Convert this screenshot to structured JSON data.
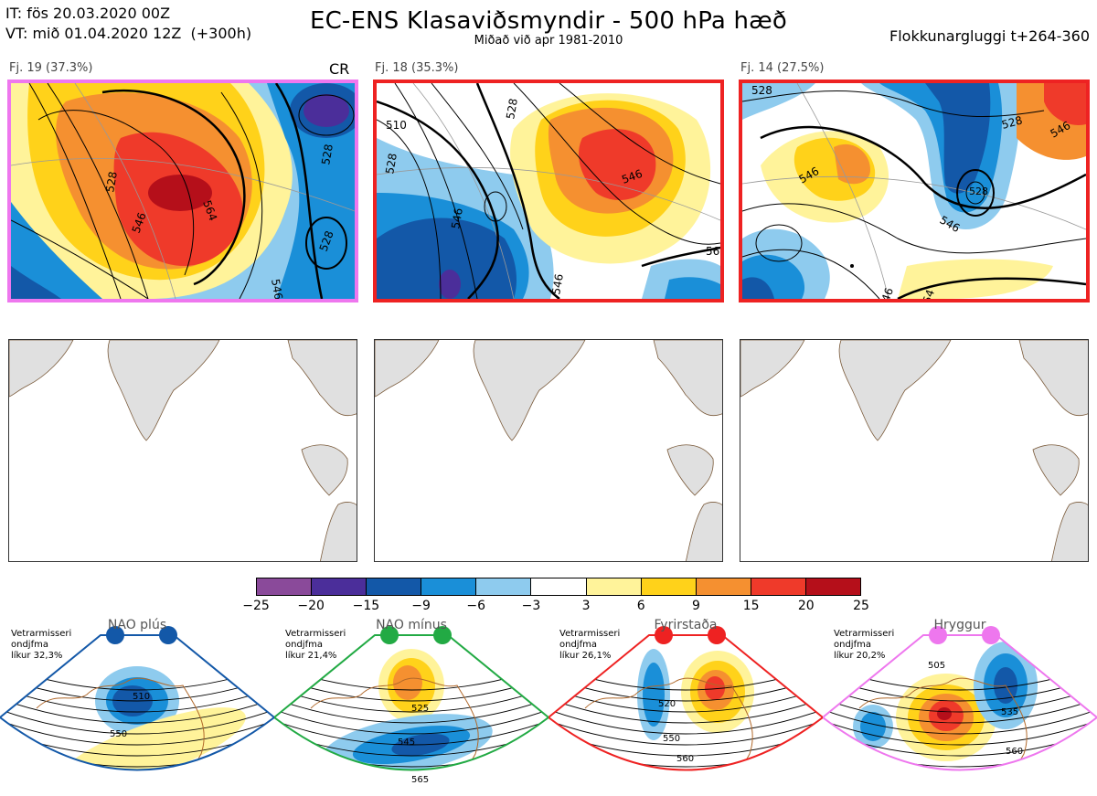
{
  "header": {
    "it_line": "IT: fös 20.03.2020 00Z",
    "vt_line": "VT: mið 01.04.2020 12Z  (+300h)",
    "title": "EC-ENS Klasaviðsmyndir - 500 hPa hæð",
    "subtitle": "Miðað við apr 1981-2010",
    "window": "Flokkunargluggi t+264-360"
  },
  "clusters": [
    {
      "label": "Fj. 19 (37.3%)",
      "border_color": "#ee77ee",
      "extra": "CR"
    },
    {
      "label": "Fj. 18 (35.3%)",
      "border_color": "#ee2222",
      "extra": ""
    },
    {
      "label": "Fj. 14 (27.5%)",
      "border_color": "#ee2222",
      "extra": ""
    }
  ],
  "colorbar": {
    "ticks": [
      "−25",
      "−20",
      "−15",
      "−9",
      "−6",
      "−3",
      "3",
      "6",
      "9",
      "15",
      "20",
      "25"
    ],
    "colors": [
      "#8a4a9a",
      "#4b2e9a",
      "#1358a8",
      "#1a8fd8",
      "#8ecbee",
      "#ffffff",
      "#fff39a",
      "#ffd21a",
      "#f59030",
      "#ef3a2a",
      "#b50f1a"
    ]
  },
  "regimes": [
    {
      "name": "NAO plús",
      "note_line1": "Vetrarmisseri",
      "note_line2": "ondjfma",
      "note_line3": "líkur 32,3%",
      "color": "#1358a8",
      "labels": [
        "510",
        "550"
      ]
    },
    {
      "name": "NAO mínus",
      "note_line1": "Vetrarmisseri",
      "note_line2": "ondjfma",
      "note_line3": "líkur 21,4%",
      "color": "#22aa44",
      "labels": [
        "525",
        "545",
        "565"
      ]
    },
    {
      "name": "Fyrirstaða",
      "note_line1": "Vetrarmisseri",
      "note_line2": "ondjfma",
      "note_line3": "líkur 26,1%",
      "color": "#ee2222",
      "labels": [
        "520",
        "550",
        "560"
      ]
    },
    {
      "name": "Hryggur",
      "note_line1": "Vetrarmisseri",
      "note_line2": "ondjfma",
      "note_line3": "líkur 20,2%",
      "color": "#ee77ee",
      "labels": [
        "505",
        "535",
        "560"
      ]
    }
  ],
  "cluster_contour_labels": [
    [
      "528",
      "546",
      "564",
      "546",
      "528",
      "528"
    ],
    [
      "528",
      "510",
      "528",
      "546",
      "546",
      "546",
      "56"
    ],
    [
      "528",
      "546",
      "528",
      "546",
      "528",
      "546",
      "46",
      "54"
    ]
  ]
}
